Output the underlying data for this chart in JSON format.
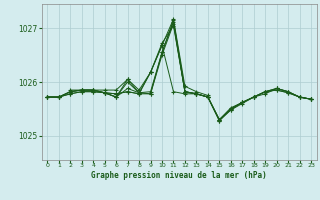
{
  "background_color": "#d4ecee",
  "grid_color": "#aecdd1",
  "line_color": "#1a5c1a",
  "title": "Graphe pression niveau de la mer (hPa)",
  "xlim": [
    -0.5,
    23.5
  ],
  "ylim": [
    1024.55,
    1027.45
  ],
  "yticks": [
    1025,
    1026,
    1027
  ],
  "xticks": [
    0,
    1,
    2,
    3,
    4,
    5,
    6,
    7,
    8,
    9,
    10,
    11,
    12,
    13,
    14,
    15,
    16,
    17,
    18,
    19,
    20,
    21,
    22,
    23
  ],
  "series": [
    [
      1025.72,
      1025.72,
      1025.78,
      1025.82,
      1025.82,
      1025.8,
      1025.78,
      1025.82,
      1025.78,
      1025.78,
      1026.55,
      1027.15,
      1025.82,
      1025.78,
      1025.72,
      1025.3,
      1025.5,
      1025.62,
      1025.72,
      1025.82,
      1025.88,
      1025.82,
      1025.72,
      1025.68
    ],
    [
      1025.72,
      1025.72,
      1025.78,
      1025.82,
      1025.82,
      1025.8,
      1025.78,
      1025.82,
      1025.78,
      1026.18,
      1026.68,
      1025.82,
      1025.78,
      1025.78,
      1025.72,
      1025.3,
      1025.52,
      1025.62,
      1025.72,
      1025.82,
      1025.85,
      1025.8,
      1025.72,
      1025.68
    ],
    [
      1025.72,
      1025.72,
      1025.82,
      1025.85,
      1025.85,
      1025.8,
      1025.72,
      1026.05,
      1025.8,
      1025.82,
      1026.55,
      1027.12,
      1025.82,
      1025.78,
      1025.72,
      1025.3,
      1025.48,
      1025.62,
      1025.72,
      1025.78,
      1025.88,
      1025.82,
      1025.72,
      1025.68
    ],
    [
      1025.72,
      1025.72,
      1025.82,
      1025.85,
      1025.85,
      1025.8,
      1025.72,
      1026.0,
      1025.8,
      1026.18,
      1026.72,
      1027.05,
      1025.82,
      1025.78,
      1025.72,
      1025.28,
      1025.5,
      1025.62,
      1025.72,
      1025.82,
      1025.88,
      1025.82,
      1025.72,
      1025.68
    ],
    [
      1025.72,
      1025.72,
      1025.82,
      1025.85,
      1025.85,
      1025.8,
      1025.72,
      1025.88,
      1025.8,
      1025.78,
      1026.5,
      1027.08,
      1025.82,
      1025.78,
      1025.72,
      1025.28,
      1025.48,
      1025.6,
      1025.72,
      1025.82,
      1025.85,
      1025.8,
      1025.72,
      1025.68
    ]
  ],
  "special_series": {
    "x": [
      2,
      3,
      4,
      5,
      6,
      7,
      8,
      9,
      10,
      11,
      12,
      13,
      14
    ],
    "y": [
      1025.85,
      1025.85,
      1025.85,
      1025.85,
      1025.85,
      1026.05,
      1025.85,
      1026.18,
      1026.68,
      1027.17,
      1025.92,
      1025.82,
      1025.75
    ]
  }
}
